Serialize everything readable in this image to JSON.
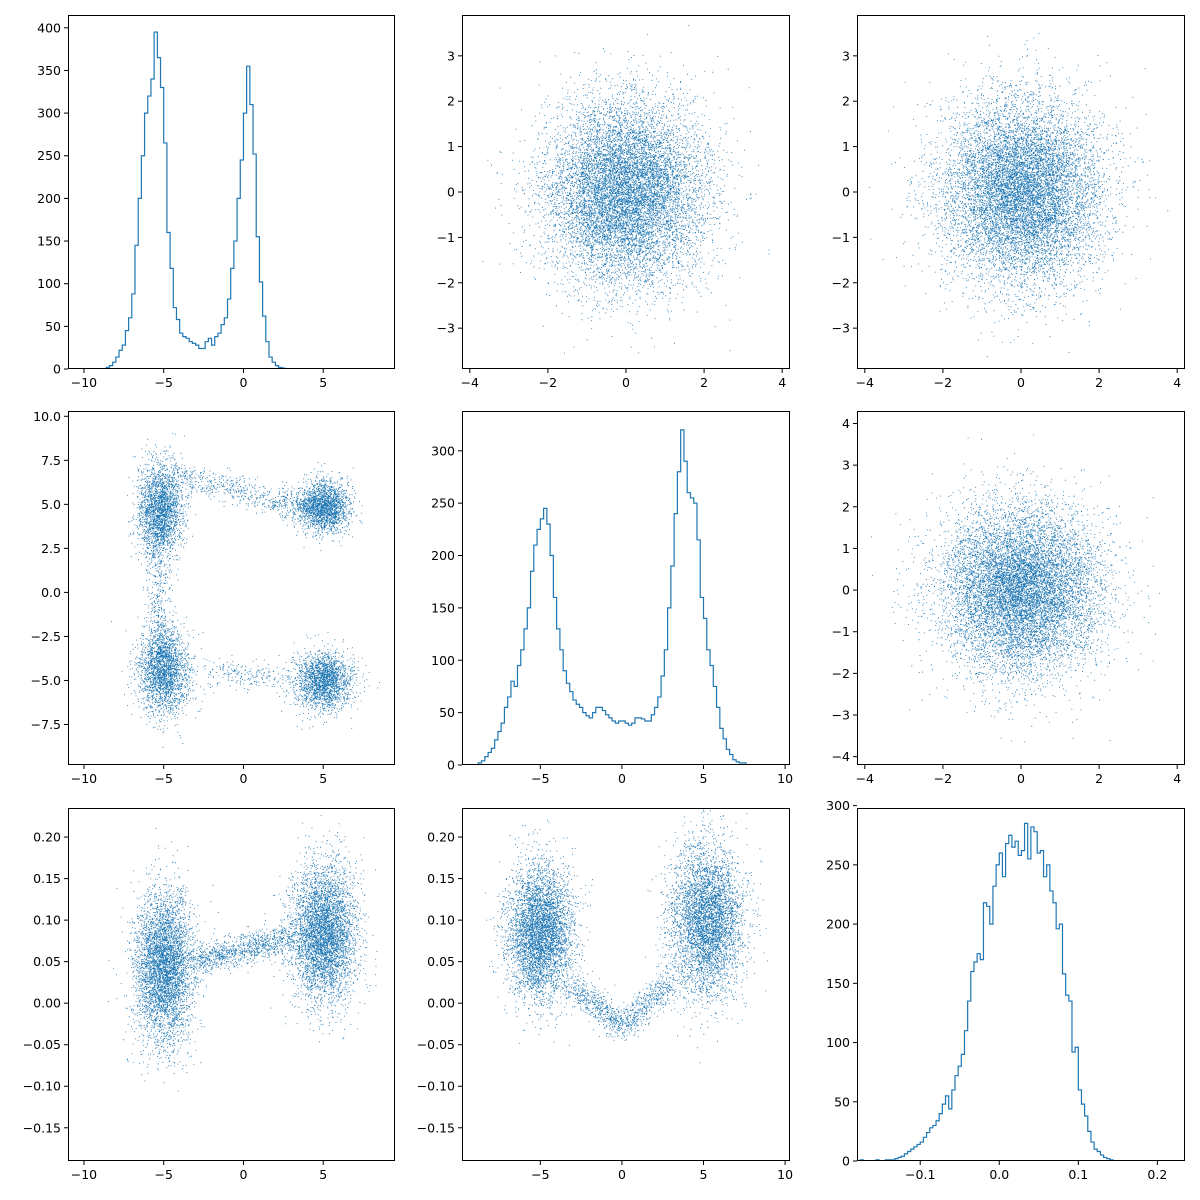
{
  "style": {
    "series_color": "#1f77b4",
    "axis_color": "#000000",
    "background": "#ffffff"
  },
  "chart_data": [
    {
      "panel": "row1-col1",
      "type": "histogram",
      "title": "",
      "xlabel": "",
      "ylabel": "",
      "xlim": [
        -11,
        9.5
      ],
      "ylim": [
        0,
        415
      ],
      "xticks": [
        -10,
        -5,
        0,
        5
      ],
      "yticks": [
        0,
        50,
        100,
        150,
        200,
        250,
        300,
        350,
        400
      ],
      "bin_width": 0.2,
      "bin_start": -8.8,
      "counts": [
        0,
        2,
        4,
        8,
        14,
        22,
        28,
        45,
        60,
        88,
        145,
        200,
        250,
        300,
        320,
        340,
        395,
        365,
        330,
        265,
        160,
        118,
        72,
        58,
        42,
        38,
        36,
        32,
        30,
        28,
        24,
        24,
        32,
        36,
        28,
        38,
        42,
        52,
        60,
        82,
        118,
        150,
        200,
        245,
        300,
        355,
        310,
        252,
        155,
        102,
        62,
        32,
        14,
        8,
        4,
        2,
        1
      ]
    },
    {
      "panel": "row1-col2",
      "type": "scatter",
      "title": "",
      "xlabel": "",
      "ylabel": "",
      "distribution": "independent standard normal in x and y",
      "n_points": 10000,
      "xlim": [
        -4.2,
        4.2
      ],
      "ylim": [
        -3.9,
        3.9
      ],
      "xticks": [
        -4,
        -2,
        0,
        2,
        4
      ],
      "yticks": [
        -3,
        -2,
        -1,
        0,
        1,
        2,
        3
      ],
      "x_mean": 0,
      "x_std": 1,
      "y_mean": 0,
      "y_std": 1
    },
    {
      "panel": "row1-col3",
      "type": "scatter",
      "title": "",
      "xlabel": "",
      "ylabel": "",
      "distribution": "independent standard normal in x and y",
      "n_points": 10000,
      "xlim": [
        -4.2,
        4.2
      ],
      "ylim": [
        -3.9,
        3.9
      ],
      "xticks": [
        -4,
        -2,
        0,
        2,
        4
      ],
      "yticks": [
        -3,
        -2,
        -1,
        0,
        1,
        2,
        3
      ],
      "x_mean": 0,
      "x_std": 1,
      "y_mean": 0,
      "y_std": 1
    },
    {
      "panel": "row2-col1",
      "type": "scatter",
      "title": "",
      "xlabel": "",
      "ylabel": "",
      "distribution": "clusters near (-5,5), (5,5), (-5,-5), (5,-5) joined by a band from left column to upper right",
      "n_points": 10000,
      "xlim": [
        -11,
        9.5
      ],
      "ylim": [
        -9.8,
        10.3
      ],
      "xticks": [
        -10,
        -5,
        0,
        5
      ],
      "yticks": [
        -7.5,
        -5.0,
        -2.5,
        0.0,
        2.5,
        5.0,
        7.5,
        10.0
      ],
      "clusters": [
        {
          "center": [
            -5.2,
            4.8
          ],
          "spread": [
            0.7,
            1.3
          ],
          "share": 0.22
        },
        {
          "center": [
            -5.0,
            -4.5
          ],
          "spread": [
            0.8,
            1.2
          ],
          "share": 0.22
        },
        {
          "center": [
            5.0,
            4.9
          ],
          "spread": [
            0.8,
            0.7
          ],
          "share": 0.2
        },
        {
          "center": [
            5.0,
            -5.0
          ],
          "spread": [
            0.9,
            0.8
          ],
          "share": 0.2
        }
      ],
      "bridges": [
        {
          "from": [
            -5.5,
            5.2
          ],
          "to": [
            -5.2,
            -4.5
          ],
          "share": 0.06
        },
        {
          "from": [
            -4.5,
            6.8
          ],
          "to": [
            4.5,
            4.6
          ],
          "share": 0.06
        },
        {
          "from": [
            -2.5,
            -4.6
          ],
          "to": [
            2.5,
            -4.8
          ],
          "share": 0.02
        }
      ]
    },
    {
      "panel": "row2-col2",
      "type": "histogram",
      "title": "",
      "xlabel": "",
      "ylabel": "",
      "xlim": [
        -9.8,
        10.3
      ],
      "ylim": [
        0,
        338
      ],
      "xticks": [
        -5,
        0,
        5,
        10
      ],
      "yticks": [
        0,
        50,
        100,
        150,
        200,
        250,
        300
      ],
      "bin_width": 0.2,
      "bin_start": -8.8,
      "counts": [
        2,
        4,
        8,
        12,
        16,
        24,
        32,
        40,
        55,
        65,
        80,
        75,
        95,
        110,
        130,
        150,
        185,
        210,
        225,
        235,
        245,
        230,
        200,
        160,
        130,
        110,
        90,
        78,
        70,
        62,
        58,
        55,
        50,
        47,
        45,
        50,
        55,
        55,
        52,
        48,
        45,
        42,
        40,
        42,
        42,
        40,
        38,
        40,
        45,
        45,
        44,
        42,
        42,
        48,
        55,
        65,
        85,
        110,
        150,
        190,
        240,
        280,
        320,
        290,
        260,
        255,
        250,
        215,
        160,
        140,
        110,
        95,
        75,
        55,
        35,
        25,
        15,
        10,
        5,
        3,
        2,
        2
      ]
    },
    {
      "panel": "row2-col3",
      "type": "scatter",
      "title": "",
      "xlabel": "",
      "ylabel": "",
      "distribution": "independent standard normal in x and y",
      "n_points": 10000,
      "xlim": [
        -4.2,
        4.2
      ],
      "ylim": [
        -4.2,
        4.3
      ],
      "xticks": [
        -4,
        -2,
        0,
        2,
        4
      ],
      "yticks": [
        -4,
        -3,
        -2,
        -1,
        0,
        1,
        2,
        3,
        4
      ],
      "x_mean": 0,
      "x_std": 1,
      "y_mean": 0,
      "y_std": 1
    },
    {
      "panel": "row3-col1",
      "type": "scatter",
      "title": "",
      "xlabel": "",
      "ylabel": "",
      "distribution": "two vertical clusters near x=-5 and x=5 with a sparse connecting band",
      "n_points": 10000,
      "xlim": [
        -11,
        9.5
      ],
      "ylim": [
        -0.19,
        0.235
      ],
      "xticks": [
        -10,
        -5,
        0,
        5
      ],
      "yticks": [
        -0.15,
        -0.1,
        -0.05,
        0.0,
        0.05,
        0.1,
        0.15,
        0.2
      ],
      "clusters": [
        {
          "center": [
            -5.0,
            0.045
          ],
          "spread": [
            0.9,
            0.045
          ],
          "share": 0.45
        },
        {
          "center": [
            5.0,
            0.085
          ],
          "spread": [
            1.0,
            0.04
          ],
          "share": 0.45
        }
      ],
      "bridges": [
        {
          "from": [
            -3.0,
            0.05
          ],
          "to": [
            3.0,
            0.08
          ],
          "share": 0.1
        }
      ]
    },
    {
      "panel": "row3-col2",
      "type": "scatter",
      "title": "",
      "xlabel": "",
      "ylabel": "",
      "distribution": "two tilted clusters near x=-5 and x=5 joined by a dip near x=0",
      "n_points": 10000,
      "xlim": [
        -9.8,
        10.3
      ],
      "ylim": [
        -0.19,
        0.235
      ],
      "xticks": [
        -5,
        0,
        5,
        10
      ],
      "yticks": [
        -0.15,
        -0.1,
        -0.05,
        0.0,
        0.05,
        0.1,
        0.15,
        0.2
      ],
      "clusters": [
        {
          "center": [
            -5.0,
            0.085
          ],
          "spread": [
            1.0,
            0.04
          ],
          "share": 0.45
        },
        {
          "center": [
            5.2,
            0.1
          ],
          "spread": [
            1.1,
            0.045
          ],
          "share": 0.45
        }
      ],
      "bridges": [
        {
          "from": [
            -3.0,
            0.02
          ],
          "to": [
            0.0,
            -0.03
          ],
          "share": 0.05
        },
        {
          "from": [
            0.0,
            -0.03
          ],
          "to": [
            3.0,
            0.03
          ],
          "share": 0.05
        }
      ]
    },
    {
      "panel": "row3-col3",
      "type": "histogram",
      "title": "",
      "xlabel": "",
      "ylabel": "",
      "xlim": [
        -0.18,
        0.235
      ],
      "ylim": [
        0,
        298
      ],
      "xticks": [
        -0.1,
        0.0,
        0.1,
        0.2
      ],
      "yticks": [
        0,
        50,
        100,
        150,
        200,
        250,
        300
      ],
      "bin_width": 0.004,
      "bin_start": -0.176,
      "counts": [
        1,
        0,
        0,
        0,
        0,
        1,
        0,
        0,
        1,
        1,
        1,
        2,
        3,
        4,
        6,
        8,
        10,
        12,
        14,
        16,
        20,
        24,
        28,
        30,
        34,
        40,
        48,
        55,
        44,
        60,
        72,
        80,
        90,
        110,
        135,
        160,
        168,
        175,
        170,
        218,
        215,
        200,
        232,
        250,
        260,
        240,
        268,
        275,
        265,
        270,
        258,
        262,
        285,
        255,
        282,
        278,
        260,
        262,
        240,
        250,
        228,
        218,
        196,
        200,
        158,
        140,
        135,
        92,
        96,
        60,
        48,
        38,
        25,
        16,
        10,
        8,
        5,
        3,
        2,
        1
      ]
    }
  ]
}
